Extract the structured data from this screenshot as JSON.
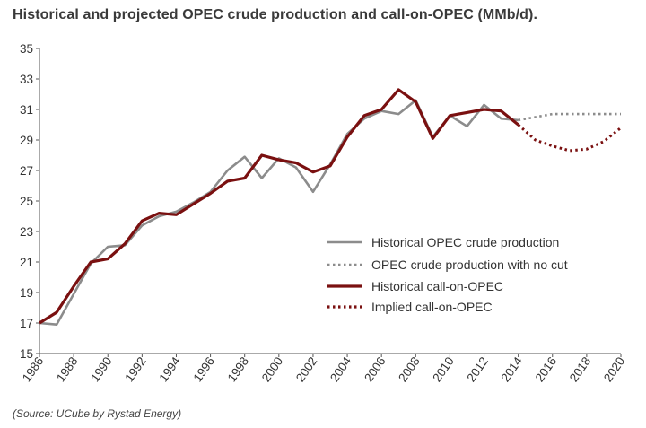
{
  "chart_data": {
    "type": "line",
    "title": "Historical and projected OPEC crude production and call-on-OPEC (MMb/d).",
    "source": "(Source: UCube by Rystad Energy)",
    "xlabel": "",
    "ylabel": "",
    "xlim": [
      1986,
      2020
    ],
    "ylim": [
      15,
      35
    ],
    "x_ticks": [
      "1986",
      "1988",
      "1990",
      "1992",
      "1994",
      "1996",
      "1998",
      "2000",
      "2002",
      "2004",
      "2006",
      "2008",
      "2010",
      "2012",
      "2014",
      "2016",
      "2018",
      "2020"
    ],
    "y_ticks": [
      "15",
      "17",
      "19",
      "21",
      "23",
      "25",
      "27",
      "29",
      "31",
      "33",
      "35"
    ],
    "legend_position": "center-right",
    "grid": false,
    "series": [
      {
        "name": "Historical OPEC crude production",
        "style": "solid",
        "color": "#8c8c8c",
        "x": [
          1986,
          1987,
          1988,
          1989,
          1990,
          1991,
          1992,
          1993,
          1994,
          1995,
          1996,
          1997,
          1998,
          1999,
          2000,
          2001,
          2002,
          2003,
          2004,
          2005,
          2006,
          2007,
          2008,
          2009,
          2010,
          2011,
          2012,
          2013,
          2014
        ],
        "values": [
          17.0,
          16.9,
          18.9,
          20.9,
          22.0,
          22.1,
          23.4,
          24.0,
          24.3,
          24.9,
          25.6,
          27.0,
          27.9,
          26.5,
          27.8,
          27.2,
          25.6,
          27.4,
          29.4,
          30.4,
          30.9,
          30.7,
          31.6,
          29.2,
          30.6,
          29.9,
          31.3,
          30.4,
          30.3
        ]
      },
      {
        "name": "OPEC crude production with no cut",
        "style": "dotted",
        "color": "#8c8c8c",
        "x": [
          2014,
          2015,
          2016,
          2017,
          2018,
          2019,
          2020
        ],
        "values": [
          30.3,
          30.5,
          30.7,
          30.7,
          30.7,
          30.7,
          30.7
        ]
      },
      {
        "name": "Historical call-on-OPEC",
        "style": "solid",
        "color": "#7a1010",
        "x": [
          1986,
          1987,
          1988,
          1989,
          1990,
          1991,
          1992,
          1993,
          1994,
          1995,
          1996,
          1997,
          1998,
          1999,
          2000,
          2001,
          2002,
          2003,
          2004,
          2005,
          2006,
          2007,
          2008,
          2009,
          2010,
          2011,
          2012,
          2013,
          2014
        ],
        "values": [
          17.0,
          17.7,
          19.4,
          21.0,
          21.2,
          22.2,
          23.7,
          24.2,
          24.1,
          24.8,
          25.5,
          26.3,
          26.5,
          28.0,
          27.7,
          27.5,
          26.9,
          27.3,
          29.2,
          30.6,
          31.0,
          32.3,
          31.5,
          29.1,
          30.6,
          30.8,
          31.0,
          30.9,
          30.0
        ]
      },
      {
        "name": "Implied call-on-OPEC",
        "style": "dotted",
        "color": "#7a1010",
        "x": [
          2014,
          2015,
          2016,
          2017,
          2018,
          2019,
          2020
        ],
        "values": [
          30.0,
          29.0,
          28.6,
          28.3,
          28.4,
          28.9,
          29.8
        ]
      }
    ]
  }
}
